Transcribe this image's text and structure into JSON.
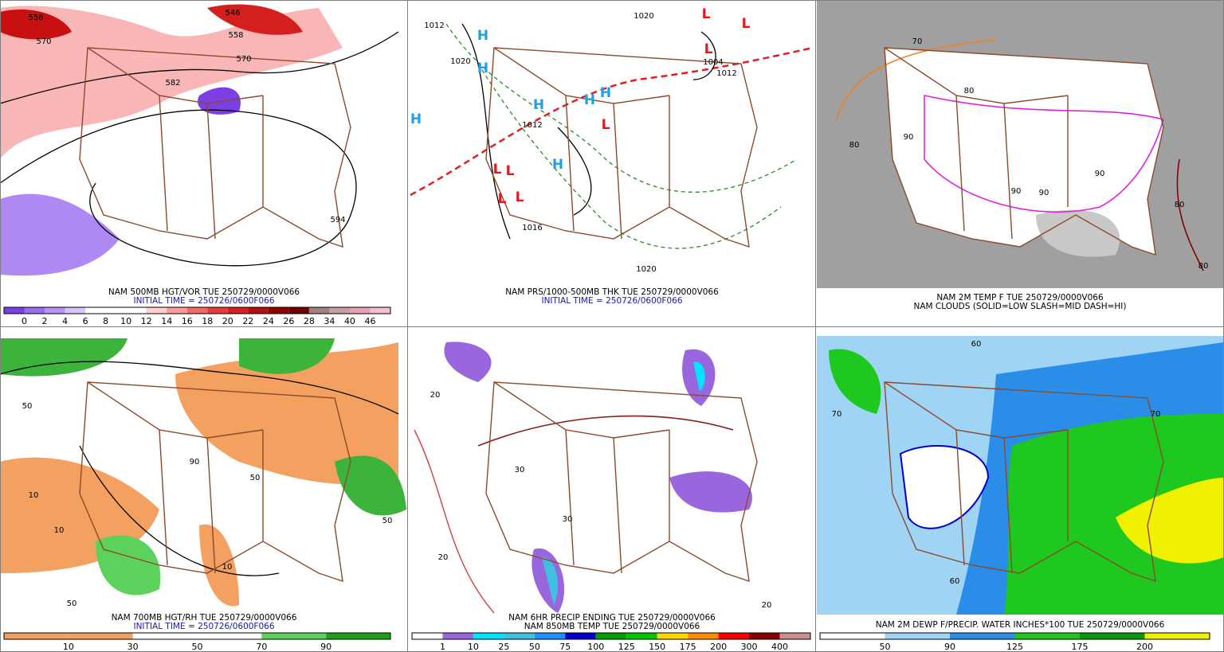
{
  "panels": [
    {
      "caption": [
        "NAM 500MB HGT/VOR TUE 250729/0000V066",
        "INITIAL TIME = 250726/0600F066"
      ],
      "colorbar": {
        "labels": [
          "0",
          "2",
          "4",
          "6",
          "8",
          "10",
          "12",
          "14",
          "16",
          "18",
          "20",
          "22",
          "24",
          "26",
          "28",
          "34",
          "40",
          "46"
        ],
        "colors": [
          "#7b3fe4",
          "#9a6cf0",
          "#b596f4",
          "#d6c4fa",
          "#ffffff",
          "#ffffff",
          "#ffffff",
          "#ffd0d0",
          "#ff9a9a",
          "#f46a6a",
          "#e83c3c",
          "#d41f1f",
          "#b50f0f",
          "#900000",
          "#6e0000",
          "#a08080",
          "#c4a0a0",
          "#e8a0b4",
          "#f4c0d0"
        ]
      },
      "map_labels": [
        "558",
        "570",
        "546",
        "558",
        "570",
        "582",
        "594"
      ]
    },
    {
      "caption": [
        "NAM PRS/1000-500MB THK TUE 250729/0000V066",
        "INITIAL TIME = 250726/0600F066"
      ],
      "map_labels": [
        "H",
        "H",
        "H",
        "H",
        "H",
        "H",
        "H",
        "L",
        "L",
        "L",
        "L",
        "L",
        "L",
        "L",
        "L",
        "1012",
        "1020",
        "1012",
        "1020",
        "1004",
        "1012",
        "1020",
        "1016"
      ]
    },
    {
      "caption": [
        "NAM 2M TEMP F TUE 250729/0000V066",
        "NAM CLOUDS (SOLID=LOW SLASH=MID DASH=HI)"
      ],
      "map_labels": [
        "80",
        "90",
        "90",
        "90",
        "80",
        "70",
        "80",
        "90",
        "80"
      ]
    },
    {
      "caption": [
        "NAM 700MB HGT/RH TUE 250729/0000V066",
        "INITIAL TIME = 250726/0600F066"
      ],
      "colorbar": {
        "labels": [
          "10",
          "30",
          "50",
          "70",
          "90"
        ],
        "colors": [
          "#f4a060",
          "#f4a060",
          "#ffffff",
          "#ffffff",
          "#5cd25c",
          "#1ea01e"
        ]
      },
      "map_labels": [
        "50",
        "10",
        "10",
        "90",
        "50",
        "50",
        "10",
        "50"
      ]
    },
    {
      "caption": [
        "NAM 6HR PRECIP ENDING TUE 250729/0000V066",
        "NAM 850MB TEMP TUE 250729/0000V066"
      ],
      "colorbar": {
        "labels": [
          "1",
          "10",
          "25",
          "50",
          "75",
          "100",
          "125",
          "150",
          "175",
          "200",
          "300",
          "400"
        ],
        "colors": [
          "#ffffff",
          "#9966dd",
          "#00e5ff",
          "#40c0e0",
          "#1e90ff",
          "#0000cd",
          "#00a000",
          "#00c800",
          "#ffd700",
          "#ff8c00",
          "#ff0000",
          "#8b0000",
          "#c89090"
        ]
      },
      "map_labels": [
        "30",
        "20",
        "20",
        "30",
        "20"
      ]
    },
    {
      "caption": [
        "NAM 2M DEWP F/PRECIP. WATER INCHES*100 TUE 250729/0000V066"
      ],
      "colorbar": {
        "labels": [
          "50",
          "90",
          "125",
          "175",
          "200"
        ],
        "colors": [
          "#ffffff",
          "#a0d4f4",
          "#2a8ee8",
          "#1ec81e",
          "#0a960a",
          "#f0f000"
        ]
      },
      "map_labels": [
        "60",
        "70",
        "70",
        "60"
      ]
    }
  ]
}
